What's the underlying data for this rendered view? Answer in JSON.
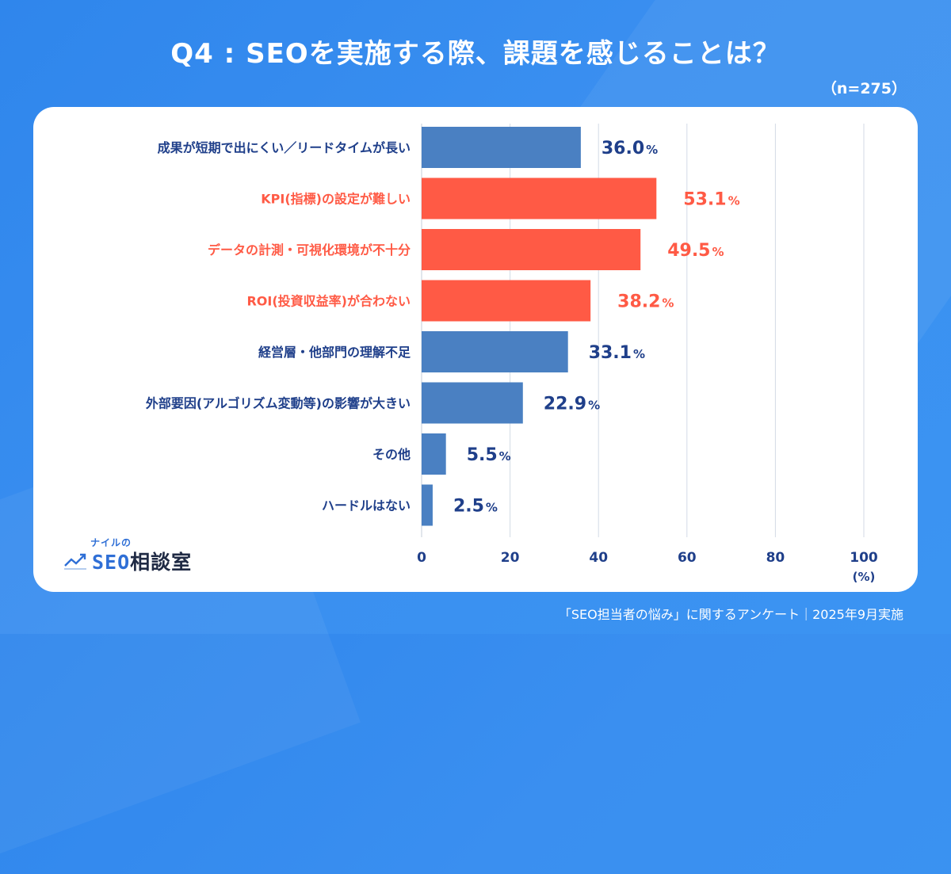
{
  "header": {
    "title": "Q4 : SEOを実施する際、課題を感じることは？",
    "sample_size": "（n=275）"
  },
  "logo": {
    "sub": "ナイルの",
    "main_prefix": "SEO",
    "main_suffix": "相談室",
    "icon": "trend-line-icon"
  },
  "footer": {
    "source": "「SEO担当者の悩み」に関するアンケート｜2025年9月実施"
  },
  "colors": {
    "background": "#3a8ff0",
    "bar_blue": "#4a80c2",
    "bar_red": "#ff5a45",
    "label_blue": "#1f3f8a",
    "label_red": "#ff5a45",
    "grid": "#d3dae6"
  },
  "chart_data": {
    "type": "bar",
    "orientation": "horizontal",
    "categories": [
      "成果が短期で出にくい／リードタイムが長い",
      "KPI(指標)の設定が難しい",
      "データの計測・可視化環境が不十分",
      "ROI(投資収益率)が合わない",
      "経営層・他部門の理解不足",
      "外部要因(アルゴリズム変動等)の影響が大きい",
      "その他",
      "ハードルはない"
    ],
    "values": [
      36.0,
      53.1,
      49.5,
      38.2,
      33.1,
      22.9,
      5.5,
      2.5
    ],
    "value_labels": [
      "36.0",
      "53.1",
      "49.5",
      "38.2",
      "33.1",
      "22.9",
      "5.5",
      "2.5"
    ],
    "value_unit": "%",
    "highlighted": [
      false,
      true,
      true,
      true,
      false,
      false,
      false,
      false
    ],
    "xlim": [
      0,
      100
    ],
    "xticks": [
      "0",
      "20",
      "40",
      "60",
      "80",
      "100"
    ],
    "xtick_values": [
      0,
      20,
      40,
      60,
      80,
      100
    ],
    "xunit": "(%)",
    "grid": true
  }
}
